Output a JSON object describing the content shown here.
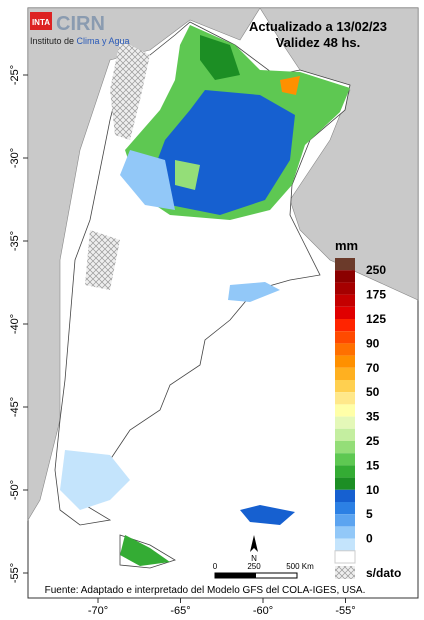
{
  "header": {
    "logo": "INTA",
    "brand": "CIRN",
    "institute_prefix": "Instituto de ",
    "institute_name": "Clima y Agua",
    "updated": "Actualizado a 13/02/23",
    "validity": "Validez 48 hs."
  },
  "axes": {
    "lon_ticks": [
      {
        "value": -70,
        "label": "-70°"
      },
      {
        "value": -65,
        "label": "-65°"
      },
      {
        "value": -60,
        "label": "-60°"
      },
      {
        "value": -55,
        "label": "-55°"
      }
    ],
    "lat_ticks": [
      {
        "value": -25,
        "label": "-25°"
      },
      {
        "value": -30,
        "label": "-30°"
      },
      {
        "value": -35,
        "label": "-35°"
      },
      {
        "value": -40,
        "label": "-40°"
      },
      {
        "value": -45,
        "label": "-45°"
      },
      {
        "value": -50,
        "label": "-50°"
      },
      {
        "value": -55,
        "label": "-55°"
      }
    ]
  },
  "legend": {
    "title": "mm",
    "labels": [
      "250",
      "175",
      "125",
      "90",
      "70",
      "50",
      "35",
      "25",
      "15",
      "10",
      "5",
      "0"
    ],
    "colors": [
      "#6b3a2a",
      "#8b0000",
      "#a50000",
      "#c40000",
      "#e00000",
      "#ff2400",
      "#ff4a00",
      "#ff7000",
      "#ff9000",
      "#ffb020",
      "#ffd050",
      "#ffe88a",
      "#ffffa8",
      "#e4f8b8",
      "#c4eea0",
      "#94de78",
      "#5ec852",
      "#34ac34",
      "#1c8e24",
      "#1660d0",
      "#2c80e4",
      "#5ca4f0",
      "#92c8f8",
      "#c4e4fc",
      "#ffffff"
    ],
    "nodata": "s/dato"
  },
  "scale": {
    "north": "N",
    "labels": [
      "0",
      "250",
      "500 Km"
    ]
  },
  "footer": "Fuente: Adaptado e interpretado del Modelo GFS del COLA-IGES, USA."
}
